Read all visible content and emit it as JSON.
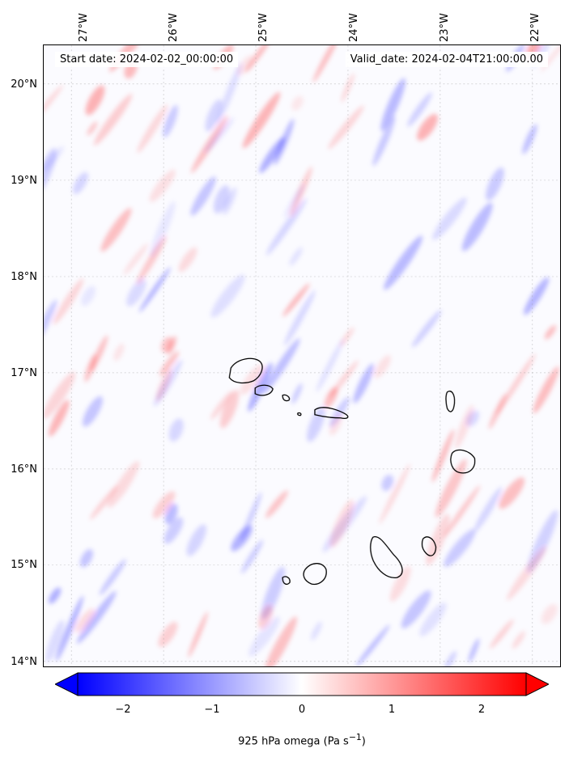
{
  "annotations": {
    "start_date": "Start date: 2024-02-02_00:00:00",
    "valid_date": "Valid_date: 2024-02-04T21:00:00.00"
  },
  "axes": {
    "lon_labels": [
      "27°W",
      "26°W",
      "25°W",
      "24°W",
      "23°W",
      "22°W"
    ],
    "lat_labels": [
      "20°N",
      "19°N",
      "18°N",
      "17°N",
      "16°N",
      "15°N",
      "14°N"
    ],
    "lon_values": [
      -27,
      -26,
      -25,
      -24,
      -23,
      -22
    ],
    "lat_values": [
      20,
      19,
      18,
      17,
      16,
      15,
      14
    ],
    "lon_range": [
      -27.3,
      -21.7
    ],
    "lat_range": [
      13.95,
      20.4
    ]
  },
  "colorbar": {
    "label_prefix": "925 hPa omega (Pa s",
    "label_exp": "−1",
    "label_suffix": ")",
    "ticks": [
      "−2",
      "−1",
      "0",
      "1",
      "2"
    ],
    "tick_values": [
      -2,
      -1,
      0,
      1,
      2
    ],
    "range": [
      -2.5,
      2.5
    ],
    "colormap": "bwr",
    "low_color": "#0000ff",
    "mid_color": "#ffffff",
    "high_color": "#ff0000",
    "extend": "both"
  },
  "gridlines": "dashed",
  "islands": [
    "Santo Antão",
    "São Vicente",
    "Santa Luzia",
    "São Nicolau",
    "Sal",
    "Boa Vista",
    "Fogo",
    "Santiago",
    "Maio",
    "Brava"
  ]
}
